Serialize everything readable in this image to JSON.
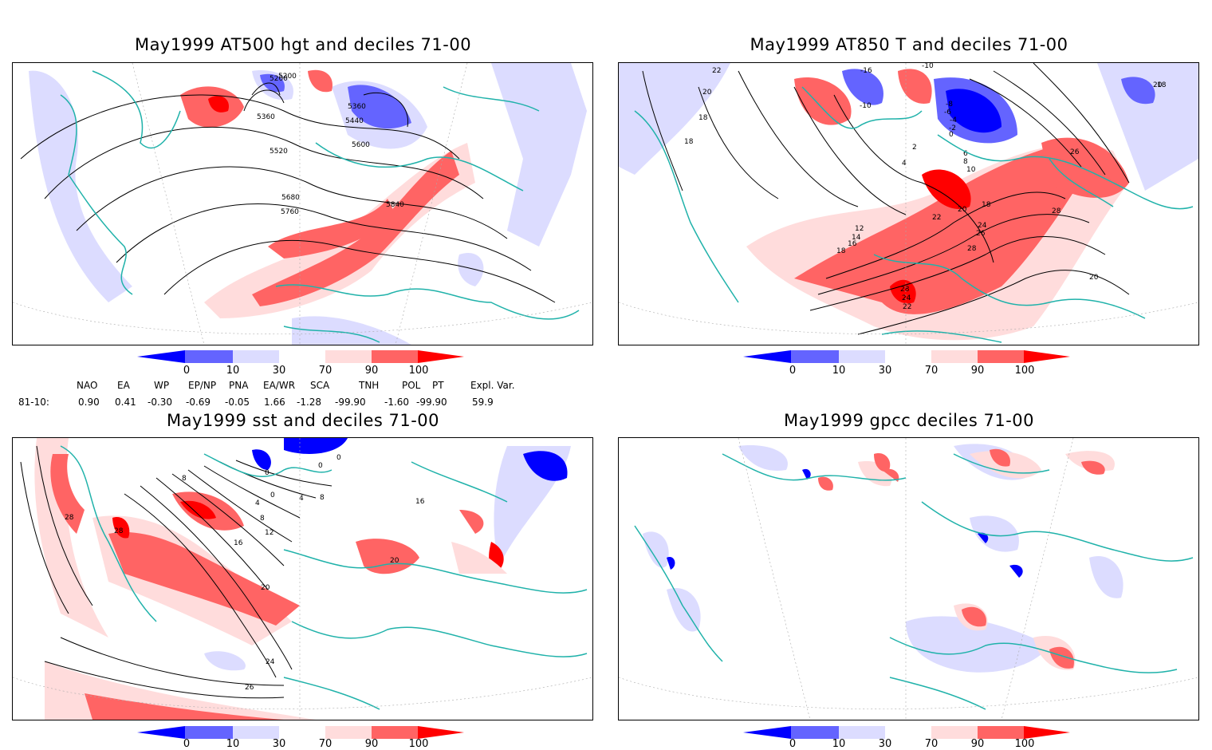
{
  "panels": [
    {
      "id": "p1",
      "title": "May1999 AT500 hgt and deciles 71-00",
      "contour_labels": [
        "5200",
        "5200",
        "5360",
        "5360",
        "5440",
        "5520",
        "5600",
        "5680",
        "5760",
        "5840"
      ]
    },
    {
      "id": "p2",
      "title": "May1999 AT850 T and deciles 71-00",
      "contour_labels": [
        "22",
        "20",
        "18",
        "18",
        "18",
        "-10",
        "-16",
        "-10",
        "-8",
        "-6",
        "-4",
        "-2",
        "0",
        "2",
        "4",
        "6",
        "8",
        "10",
        "12",
        "14",
        "16",
        "18",
        "18",
        "20",
        "22",
        "24",
        "26",
        "26",
        "28",
        "28",
        "28",
        "24",
        "22",
        "20",
        "20"
      ]
    },
    {
      "id": "p3",
      "title": "May1999 sst and deciles 71-00",
      "contour_labels": [
        "28",
        "28",
        "8",
        "0",
        "0",
        "0",
        "4",
        "4",
        "8",
        "8",
        "12",
        "16",
        "16",
        "20",
        "20",
        "24",
        "26",
        "0"
      ]
    },
    {
      "id": "p4",
      "title": "May1999 gpcc deciles 71-00",
      "contour_labels": []
    }
  ],
  "colorbar": {
    "ticks": [
      "0",
      "10",
      "30",
      "70",
      "90",
      "100"
    ],
    "colors": [
      "#0000ff",
      "#6464ff",
      "#dcdcff",
      "#ffffff",
      "#ffdcdc",
      "#ff6464",
      "#ff0000"
    ]
  },
  "indices": {
    "headers": [
      "NAO",
      "EA",
      "WP",
      "EP/NP",
      "PNA",
      "EA/WR",
      "SCA",
      "TNH",
      "POL",
      "PT",
      "Expl. Var."
    ],
    "row_label": "81-10:",
    "values": [
      "0.90",
      "0.41",
      "-0.30",
      "-0.69",
      "-0.05",
      "1.66",
      "-1.28",
      "-99.90",
      "-1.60",
      "-99.90",
      "59.9"
    ]
  },
  "colors": {
    "coast": "#20b2aa",
    "contour": "#000000",
    "grid": "#aaaaaa"
  }
}
